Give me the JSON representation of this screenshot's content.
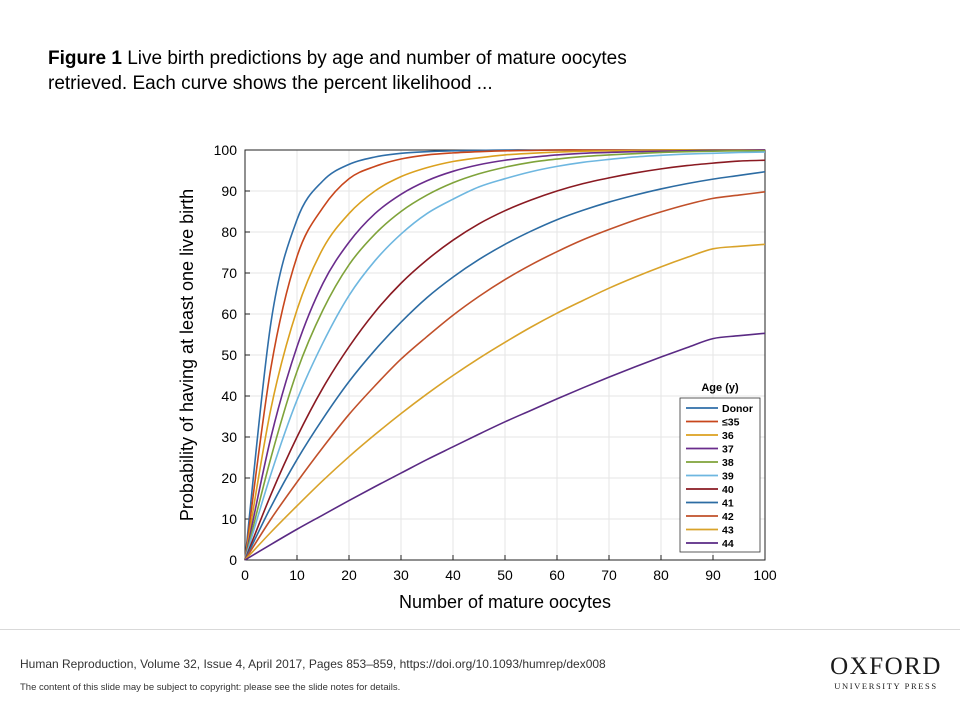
{
  "slide": {
    "figure_label": "Figure 1",
    "caption_text": "Live birth predictions by age and number of mature oocytes retrieved. Each curve shows the percent likelihood ...",
    "citation": "Human Reproduction,  Volume 32, Issue 4, April 2017, Pages 853–859,  https://doi.org/10.1093/humrep/dex008",
    "copyright": "The content of this slide may be subject to copyright: please see the slide notes for details.",
    "logo_main": "OXFORD",
    "logo_sub": "UNIVERSITY PRESS"
  },
  "chart_data": {
    "type": "line",
    "title": "",
    "xlabel": "Number of mature oocytes",
    "ylabel": "Probability of having at least one live birth",
    "xlim": [
      0,
      100
    ],
    "ylim": [
      0,
      100
    ],
    "xticks": [
      0,
      10,
      20,
      30,
      40,
      50,
      60,
      70,
      80,
      90,
      100
    ],
    "yticks": [
      0,
      10,
      20,
      30,
      40,
      50,
      60,
      70,
      80,
      90,
      100
    ],
    "grid": true,
    "legend": {
      "title": "Age (y)",
      "position": "bottom-right"
    },
    "x": [
      0,
      5,
      10,
      15,
      20,
      25,
      30,
      35,
      40,
      45,
      50,
      55,
      60,
      65,
      70,
      75,
      80,
      85,
      90,
      95,
      100
    ],
    "series": [
      {
        "name": "Donor",
        "color": "#2f6ea8",
        "values": [
          0,
          58,
          83,
          92.5,
          96.5,
          98.3,
          99.2,
          99.6,
          99.8,
          99.9,
          100,
          100,
          100,
          100,
          100,
          100,
          100,
          100,
          100,
          100,
          100
        ]
      },
      {
        "name": "≤35",
        "color": "#c8461c",
        "values": [
          0,
          47,
          74,
          86,
          93,
          96,
          97.8,
          98.8,
          99.3,
          99.6,
          99.8,
          99.9,
          100,
          100,
          100,
          100,
          100,
          100,
          100,
          100,
          100
        ]
      },
      {
        "name": "36",
        "color": "#dba11f",
        "values": [
          0,
          37,
          61,
          76,
          84.5,
          90,
          93.5,
          95.7,
          97.2,
          98.1,
          98.8,
          99.2,
          99.5,
          99.7,
          99.8,
          99.9,
          100,
          100,
          100,
          100,
          100
        ]
      },
      {
        "name": "37",
        "color": "#6a2c8c",
        "values": [
          0,
          30,
          52,
          67.5,
          77.5,
          84.5,
          89.2,
          92.5,
          94.8,
          96.4,
          97.5,
          98.2,
          98.8,
          99.2,
          99.4,
          99.6,
          99.7,
          99.8,
          99.9,
          99.9,
          100
        ]
      },
      {
        "name": "38",
        "color": "#7fa33a",
        "values": [
          0,
          25,
          46,
          61,
          72,
          79.5,
          85,
          89,
          92,
          94.2,
          95.8,
          97,
          97.8,
          98.4,
          98.8,
          99.1,
          99.4,
          99.6,
          99.7,
          99.8,
          99.8
        ]
      },
      {
        "name": "39",
        "color": "#6eb7e0",
        "values": [
          0,
          21,
          39,
          53,
          64.5,
          73,
          79.5,
          84.5,
          88,
          91,
          93,
          94.7,
          96,
          97,
          97.7,
          98.3,
          98.7,
          99,
          99.2,
          99.4,
          99.5
        ]
      },
      {
        "name": "40",
        "color": "#8a1a22",
        "values": [
          0,
          16,
          30,
          42,
          52,
          60.5,
          67.5,
          73.2,
          78,
          82,
          85.2,
          87.8,
          90,
          91.8,
          93.2,
          94.4,
          95.4,
          96.2,
          96.8,
          97.3,
          97.5
        ]
      },
      {
        "name": "41",
        "color": "#2c6ca3",
        "values": [
          0,
          13,
          24.5,
          34.5,
          43.5,
          51.2,
          58,
          64,
          69,
          73.3,
          77,
          80.2,
          83,
          85.3,
          87.3,
          89,
          90.5,
          91.8,
          92.9,
          93.8,
          94.7
        ]
      },
      {
        "name": "42",
        "color": "#c1502a",
        "values": [
          0,
          10,
          19,
          27.5,
          35.5,
          42.5,
          49,
          54.5,
          59.7,
          64.3,
          68.4,
          72,
          75.2,
          78.1,
          80.6,
          82.9,
          84.9,
          86.7,
          88.2,
          89,
          89.8
        ]
      },
      {
        "name": "43",
        "color": "#d9a32a",
        "values": [
          0,
          6.8,
          13.2,
          19.4,
          25.2,
          30.6,
          35.7,
          40.5,
          45,
          49.2,
          53.1,
          56.8,
          60.2,
          63.3,
          66.3,
          69,
          71.5,
          73.8,
          75.9,
          76.5,
          77
        ]
      },
      {
        "name": "44",
        "color": "#5a2a84",
        "values": [
          0,
          3.8,
          7.5,
          11,
          14.5,
          17.9,
          21.2,
          24.5,
          27.6,
          30.7,
          33.7,
          36.5,
          39.3,
          42,
          44.6,
          47.1,
          49.5,
          51.8,
          54,
          54.7,
          55.3
        ]
      }
    ]
  }
}
